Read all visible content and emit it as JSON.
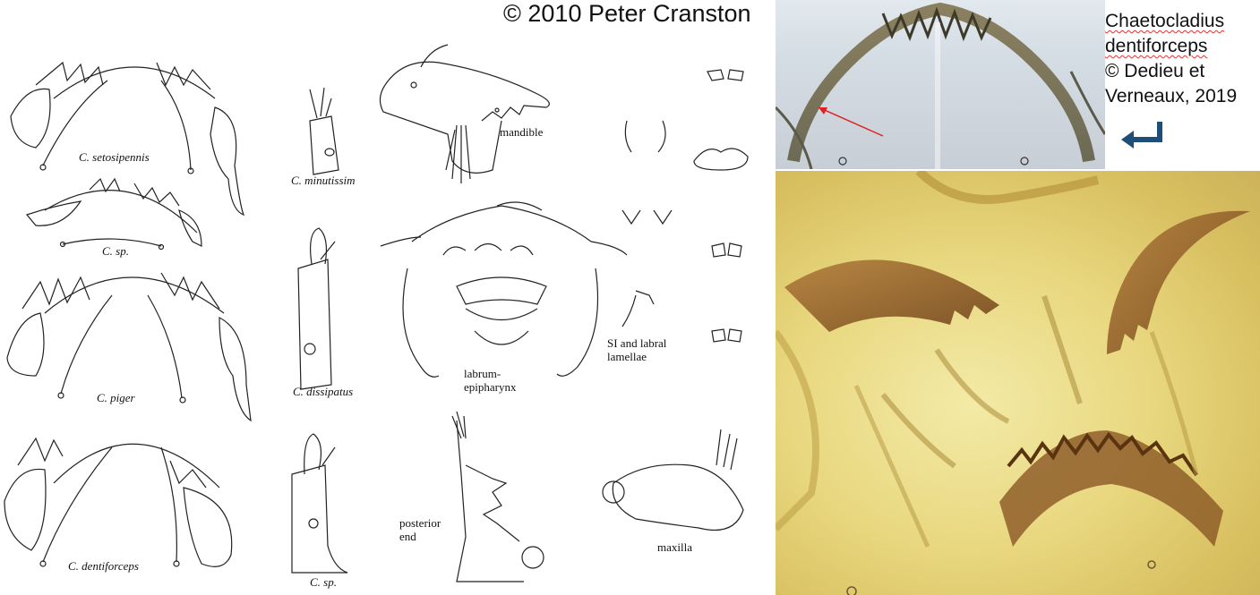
{
  "left_panel": {
    "copyright": "© 2010 Peter Cranston",
    "mentum_labels": [
      "C. setosipennis",
      "C. sp.",
      "C. piger",
      "C. dentiforceps"
    ],
    "antenna_labels": [
      "C. minutissim",
      "C. dissipatus",
      "C. sp."
    ],
    "structure_labels": {
      "mandible": "mandible",
      "labrum_line1": "labrum-",
      "labrum_line2": "epipharynx",
      "posterior_line1": "posterior",
      "posterior_line2": "end",
      "si_line1": "SI and labral",
      "si_line2": "lamellae",
      "maxilla": "maxilla"
    }
  },
  "right_panel": {
    "species_line1": "Chaetocladius",
    "species_line2": "dentiforceps",
    "credit_line1": "© Dedieu et",
    "credit_line2": "Verneaux, 2019",
    "arrow_icon": "return-arrow-icon",
    "arrow_color": "#1f4e79",
    "pointer_color": "#e02020"
  }
}
